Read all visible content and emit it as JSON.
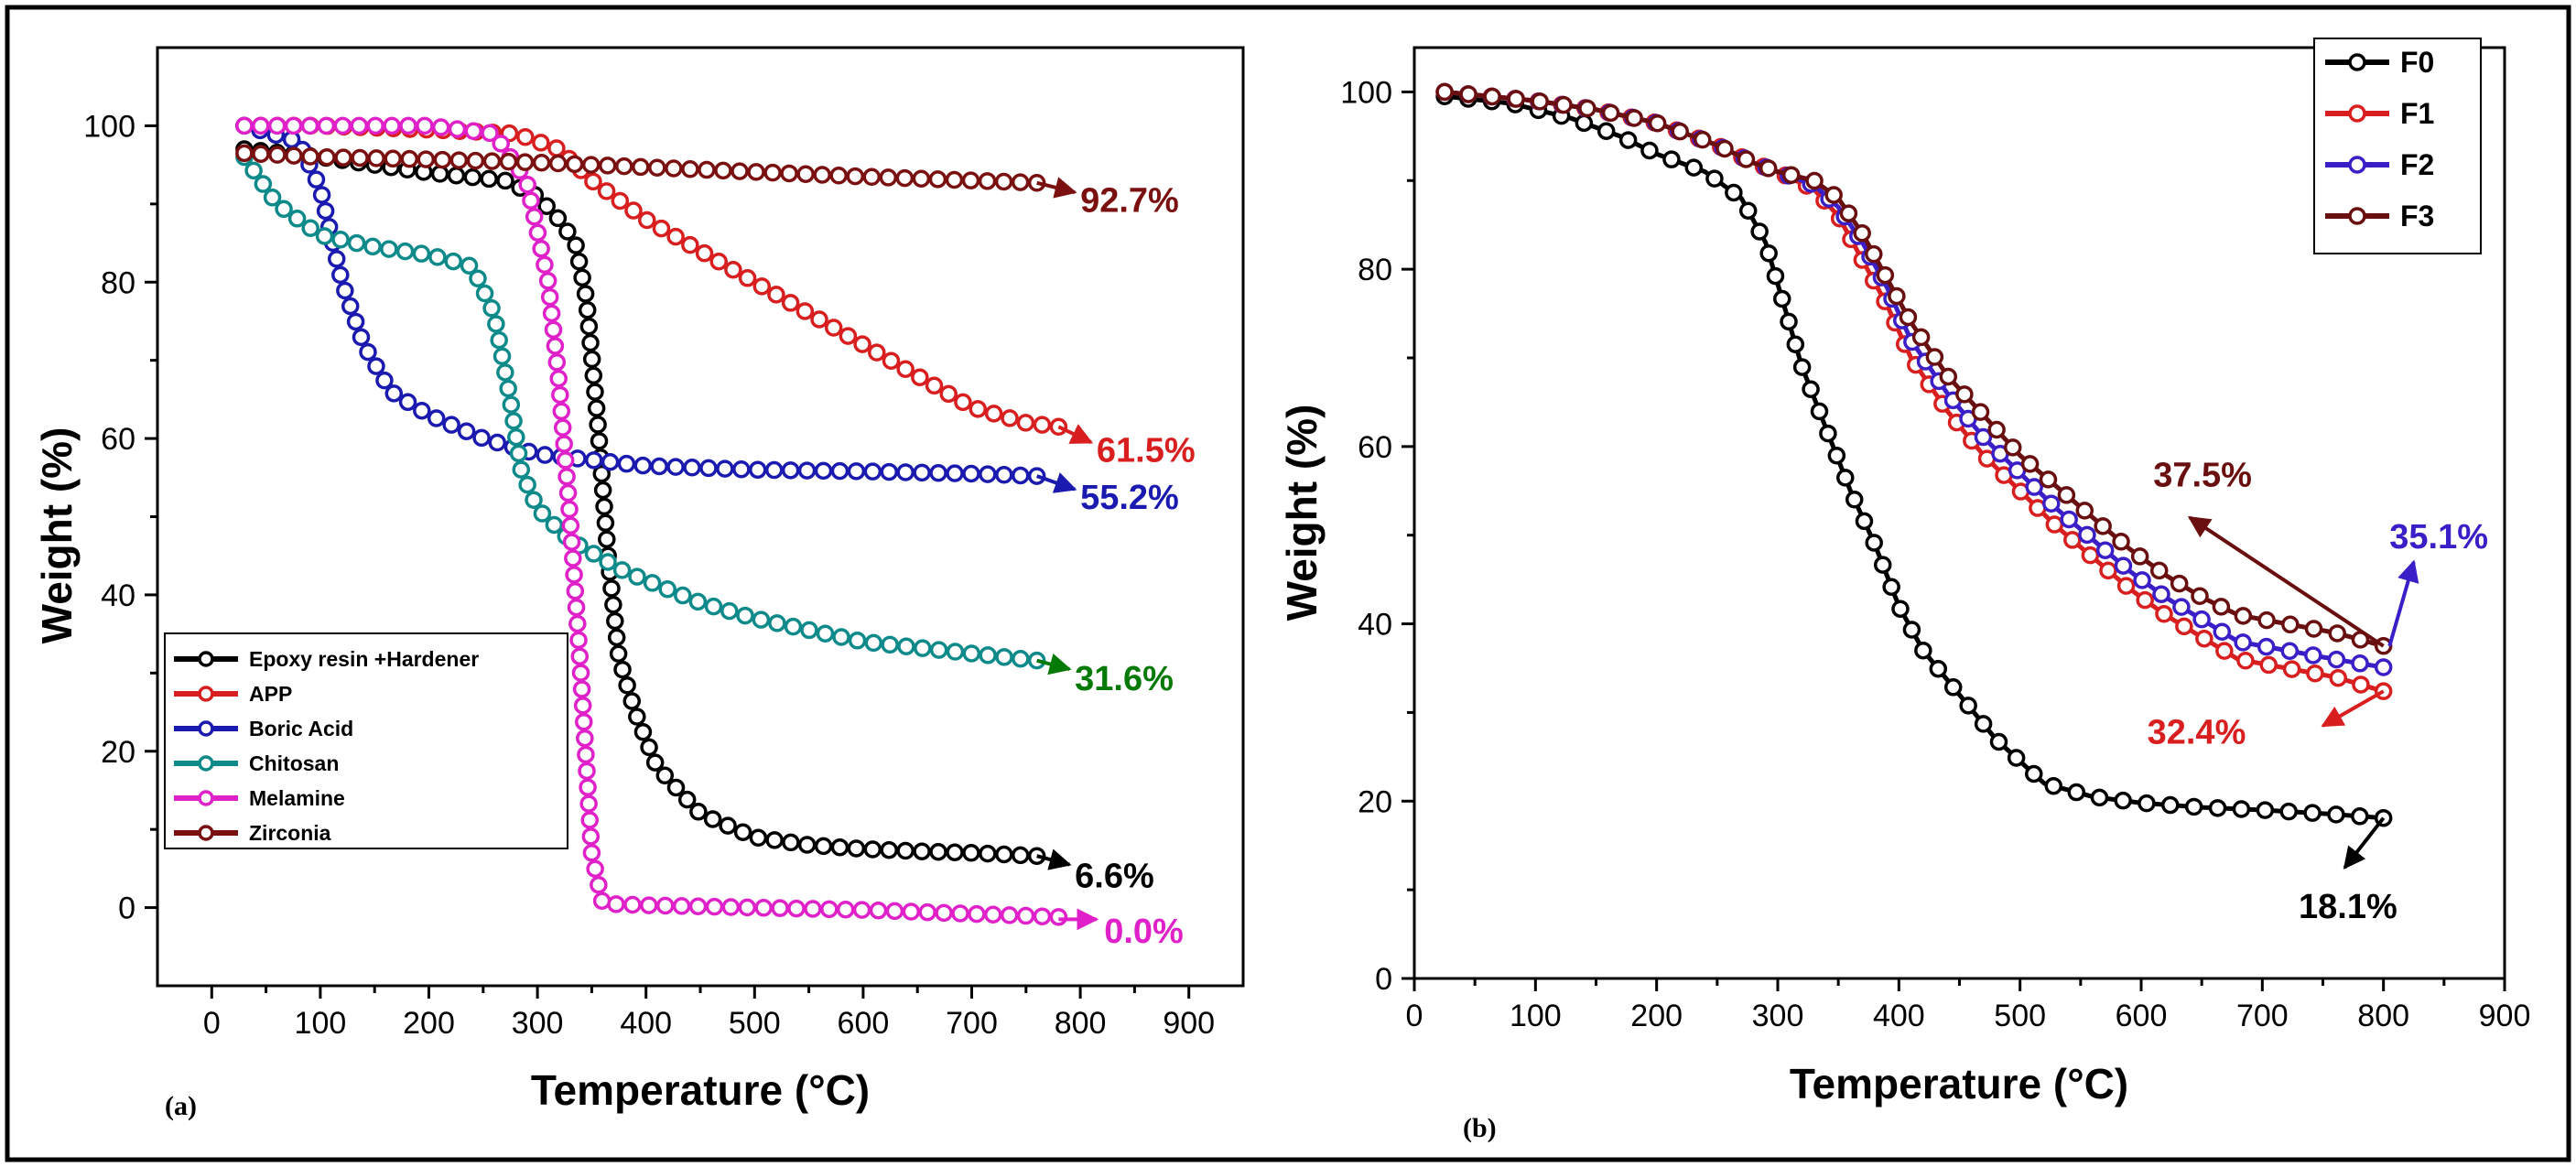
{
  "chart_data": [
    {
      "type": "line",
      "panel_label": "(a)",
      "xlabel": "Temperature (°C)",
      "ylabel": "Weight (%)",
      "xlim": [
        -50,
        950
      ],
      "ylim": [
        -10,
        110
      ],
      "xticks": [
        0,
        100,
        200,
        300,
        400,
        500,
        600,
        700,
        800,
        900
      ],
      "yticks": [
        0,
        20,
        40,
        60,
        80,
        100
      ],
      "legend_position": "bottom-left",
      "series": [
        {
          "name": "Epoxy resin +Hardener",
          "color": "#000000",
          "x": [
            30,
            100,
            200,
            270,
            300,
            320,
            335,
            345,
            355,
            365,
            375,
            390,
            410,
            450,
            500,
            550,
            600,
            650,
            700,
            760
          ],
          "y": [
            97,
            96,
            94,
            93,
            91,
            88,
            85,
            78,
            63,
            45,
            32,
            25,
            18,
            12,
            9,
            8,
            7.5,
            7.2,
            7,
            6.6
          ]
        },
        {
          "name": "APP",
          "color": "#d81e1e",
          "x": [
            30,
            100,
            200,
            280,
            320,
            350,
            400,
            450,
            500,
            550,
            600,
            650,
            700,
            750,
            780
          ],
          "y": [
            100,
            100,
            99.5,
            99,
            97,
            93,
            88,
            84,
            80,
            76,
            72,
            68,
            64,
            62,
            61.5
          ]
        },
        {
          "name": "Boric Acid",
          "color": "#1a1ab0",
          "x": [
            30,
            80,
            100,
            120,
            140,
            165,
            200,
            250,
            300,
            400,
            500,
            600,
            700,
            760
          ],
          "y": [
            100,
            98,
            92,
            80,
            72,
            66,
            63,
            60,
            58,
            56.5,
            56,
            55.8,
            55.5,
            55.2
          ]
        },
        {
          "name": "Chitosan",
          "color": "#0e8a8a",
          "x": [
            30,
            60,
            100,
            150,
            200,
            240,
            260,
            275,
            285,
            300,
            330,
            380,
            450,
            500,
            600,
            700,
            760
          ],
          "y": [
            96,
            90,
            86,
            84.5,
            83.5,
            82,
            76,
            65,
            56,
            51,
            47,
            43,
            39,
            37,
            34,
            32.5,
            31.6
          ]
        },
        {
          "name": "Melamine",
          "color": "#e020c8",
          "x": [
            30,
            100,
            200,
            260,
            290,
            310,
            320,
            330,
            340,
            350,
            360,
            400,
            500,
            600,
            700,
            780
          ],
          "y": [
            100,
            100,
            100,
            99,
            93,
            80,
            67,
            50,
            30,
            7,
            0.5,
            0.3,
            0,
            -0.3,
            -0.8,
            -1.2
          ]
        },
        {
          "name": "Zirconia",
          "color": "#7a1010",
          "x": [
            30,
            100,
            200,
            300,
            400,
            500,
            600,
            700,
            760
          ],
          "y": [
            96.5,
            96,
            95.7,
            95.3,
            94.7,
            94.1,
            93.5,
            93,
            92.7
          ]
        }
      ],
      "annotations": [
        {
          "text": "92.7%",
          "color": "#7a1010",
          "x_from": 760,
          "y_from": 92.7,
          "x_to": 795,
          "y_to": 91.5,
          "tx": 800,
          "ty": 89
        },
        {
          "text": "61.5%",
          "color": "#d81e1e",
          "x_from": 780,
          "y_from": 61.5,
          "x_to": 810,
          "y_to": 59.5,
          "tx": 815,
          "ty": 57
        },
        {
          "text": "55.2%",
          "color": "#1a1ab0",
          "x_from": 760,
          "y_from": 55.2,
          "x_to": 795,
          "y_to": 53.5,
          "tx": 800,
          "ty": 51
        },
        {
          "text": "31.6%",
          "color": "#067a06",
          "x_from": 760,
          "y_from": 31.6,
          "x_to": 790,
          "y_to": 30.5,
          "tx": 795,
          "ty": 27.8
        },
        {
          "text": "6.6%",
          "color": "#000000",
          "x_from": 760,
          "y_from": 6.6,
          "x_to": 790,
          "y_to": 5.5,
          "tx": 795,
          "ty": 2.6
        },
        {
          "text": "0.0%",
          "color": "#e020c8",
          "x_from": 780,
          "y_from": -1.5,
          "x_to": 815,
          "y_to": -1.5,
          "tx": 822,
          "ty": -4.5
        }
      ]
    },
    {
      "type": "line",
      "panel_label": "(b)",
      "xlabel": "Temperature (°C)",
      "ylabel": "Weight (%)",
      "xlim": [
        0,
        900
      ],
      "ylim": [
        0,
        105
      ],
      "xticks": [
        0,
        100,
        200,
        300,
        400,
        500,
        600,
        700,
        800,
        900
      ],
      "yticks": [
        0,
        20,
        40,
        60,
        80,
        100
      ],
      "legend_position": "top-right",
      "series": [
        {
          "name": "F0",
          "color": "#000000",
          "x": [
            25,
            80,
            130,
            170,
            200,
            240,
            270,
            290,
            305,
            320,
            340,
            360,
            380,
            400,
            420,
            450,
            480,
            520,
            560,
            600,
            650,
            700,
            750,
            800
          ],
          "y": [
            99.5,
            98.7,
            97,
            95,
            93,
            91,
            88,
            83,
            76,
            69,
            62,
            55,
            49,
            42,
            37,
            32,
            27,
            22,
            20.5,
            19.8,
            19.3,
            19,
            18.6,
            18.1
          ]
        },
        {
          "name": "F1",
          "color": "#d81e1e",
          "x": [
            25,
            100,
            150,
            200,
            250,
            280,
            300,
            330,
            350,
            370,
            390,
            410,
            440,
            470,
            500,
            530,
            560,
            590,
            620,
            650,
            680,
            720,
            760,
            800
          ],
          "y": [
            100,
            99,
            98,
            96.5,
            94,
            92,
            91,
            89,
            86,
            81,
            76,
            70,
            64,
            59,
            55,
            51,
            47.5,
            44,
            41,
            38.5,
            36,
            35,
            34,
            32.4
          ]
        },
        {
          "name": "F2",
          "color": "#3a1ec8",
          "x": [
            25,
            100,
            150,
            200,
            250,
            280,
            300,
            330,
            350,
            370,
            390,
            410,
            440,
            470,
            500,
            530,
            560,
            590,
            620,
            650,
            680,
            720,
            760,
            800
          ],
          "y": [
            100,
            99,
            98,
            96.5,
            94,
            92,
            91,
            89.5,
            87,
            83,
            78,
            72,
            66,
            61,
            57,
            53,
            49.5,
            46,
            43,
            40.5,
            38,
            37,
            36,
            35.1
          ]
        },
        {
          "name": "F3",
          "color": "#6a0f0f",
          "x": [
            25,
            100,
            150,
            200,
            250,
            280,
            300,
            330,
            350,
            370,
            390,
            410,
            440,
            470,
            500,
            530,
            560,
            590,
            620,
            650,
            680,
            720,
            760,
            800
          ],
          "y": [
            100,
            99,
            98,
            96.5,
            94,
            92,
            91,
            90,
            88,
            84,
            79,
            74,
            68,
            63.5,
            59,
            55.5,
            52,
            48.5,
            45.5,
            43,
            41,
            40,
            39,
            37.5
          ]
        }
      ],
      "annotations": [
        {
          "text": "37.5%",
          "color": "#6a0f0f",
          "x_from": 800,
          "y_from": 37.5,
          "x_to": 640,
          "y_to": 52,
          "tx": 610,
          "ty": 55.5
        },
        {
          "text": "35.1%",
          "color": "#3a1ec8",
          "x_from": 805,
          "y_from": 37.5,
          "x_to": 825,
          "y_to": 47,
          "tx": 805,
          "ty": 48.5
        },
        {
          "text": "32.4%",
          "color": "#d81e1e",
          "x_from": 800,
          "y_from": 32.4,
          "x_to": 750,
          "y_to": 28.5,
          "tx": 605,
          "ty": 26.5
        },
        {
          "text": "18.1%",
          "color": "#000000",
          "x_from": 800,
          "y_from": 18.1,
          "x_to": 768,
          "y_to": 12.5,
          "tx": 730,
          "ty": 6.8
        }
      ]
    }
  ]
}
